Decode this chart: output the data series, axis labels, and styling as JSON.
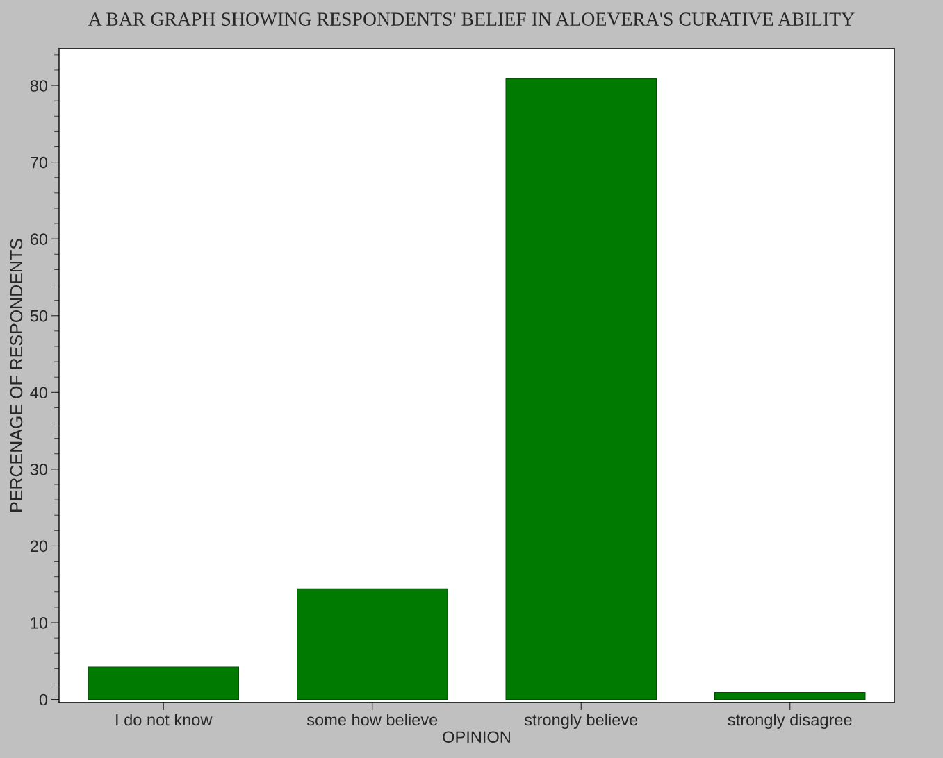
{
  "chart_data": {
    "type": "bar",
    "title": "A BAR GRAPH SHOWING RESPONDENTS' BELIEF IN ALOEVERA'S CURATIVE ABILITY",
    "xlabel": "OPINION",
    "ylabel": "PERCENAGE OF RESPONDENTS",
    "categories": [
      "I do not know",
      "some how believe",
      "strongly believe",
      "strongly disagree"
    ],
    "values": [
      4.2,
      14.4,
      80.9,
      0.9
    ],
    "color": "#007a00",
    "ylim": [
      -0.4,
      84.8
    ],
    "yticks": [
      0,
      10,
      20,
      30,
      40,
      50,
      60,
      70,
      80
    ],
    "grid": false,
    "legend": false
  }
}
